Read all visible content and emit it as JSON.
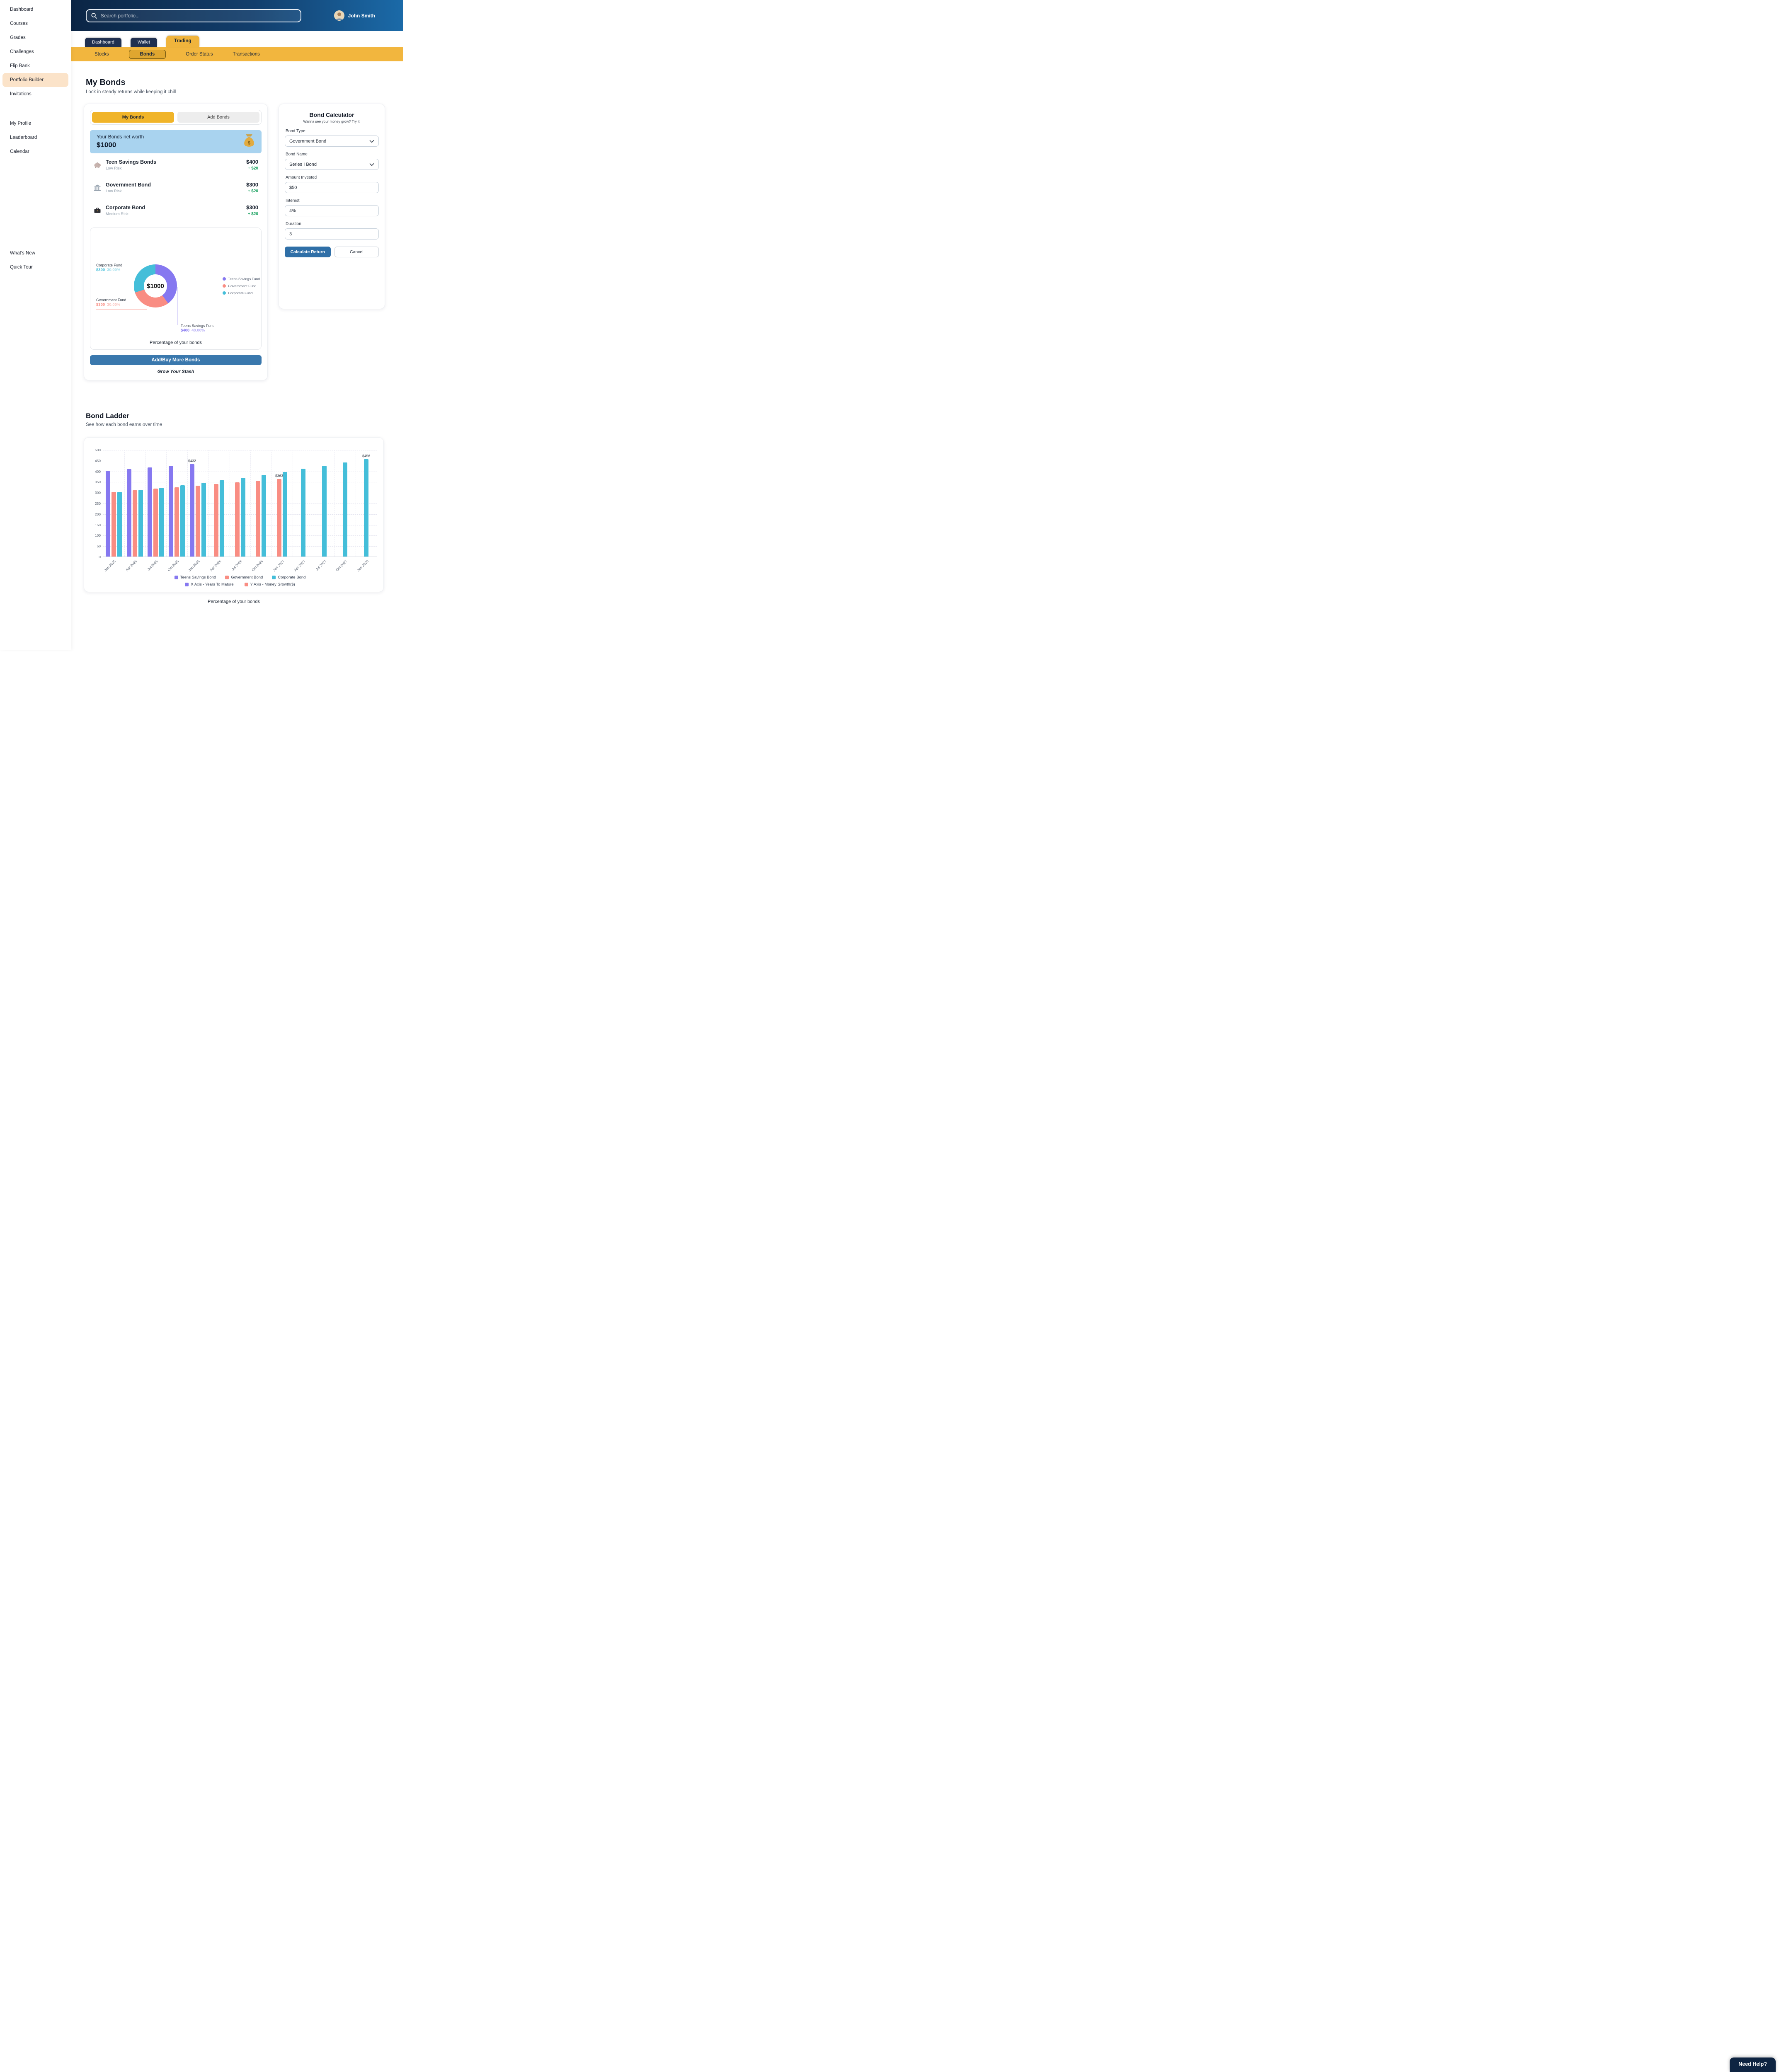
{
  "colors": {
    "teens": "#8678f0",
    "government": "#f98d83",
    "corporate": "#44bed9",
    "gold": "#f0b43c",
    "navy": "#203050",
    "blue_button": "#3a78ad",
    "green_gain": "#17a05e",
    "banner_blue": "#a9d3ef"
  },
  "header": {
    "search_placeholder": "Search portfolio...",
    "user_name": "John Smith"
  },
  "sidebar": {
    "groups": [
      {
        "items": [
          {
            "label": "Dashboard",
            "active": false
          },
          {
            "label": "Courses",
            "active": false
          },
          {
            "label": "Grades",
            "active": false
          },
          {
            "label": "Challenges",
            "active": false
          },
          {
            "label": "Flip Bank",
            "active": false
          },
          {
            "label": "Portfolio Builder",
            "active": true
          },
          {
            "label": "Invitations",
            "active": false
          }
        ]
      },
      {
        "items": [
          {
            "label": "My Profile",
            "active": false
          },
          {
            "label": "Leaderboard",
            "active": false
          },
          {
            "label": "Calendar",
            "active": false
          }
        ]
      },
      {
        "items": [
          {
            "label": "What's New",
            "active": false
          },
          {
            "label": "Quick Tour",
            "active": false
          }
        ]
      }
    ]
  },
  "tabs": [
    {
      "label": "Dashboard",
      "active": false
    },
    {
      "label": "Wallet",
      "active": false
    },
    {
      "label": "Trading",
      "active": true
    }
  ],
  "subtabs": [
    {
      "label": "Stocks",
      "active": false
    },
    {
      "label": "Bonds",
      "active": true
    },
    {
      "label": "Order Status",
      "active": false
    },
    {
      "label": "Transactions",
      "active": false
    }
  ],
  "my_bonds": {
    "title": "My Bonds",
    "subtitle": "Lock in steady returns while keeping it chill",
    "toggle": {
      "my_bonds": "My Bonds",
      "add_bonds": "Add Bonds"
    },
    "net_worth_label": "Your Bonds net worth",
    "net_worth_value": "$1000",
    "bonds": [
      {
        "name": "Teen Savings Bonds",
        "risk": "Low Risk",
        "value": "$400",
        "change": "+ $20",
        "icon": "piggy-bank"
      },
      {
        "name": "Government Bond",
        "risk": "Low Risk",
        "value": "$300",
        "change": "+ $20",
        "icon": "bank"
      },
      {
        "name": "Corporate Bond",
        "risk": "Medium Risk",
        "value": "$300",
        "change": "+ $20",
        "icon": "briefcase"
      }
    ],
    "add_button": "Add/Buy More Bonds",
    "footer_note": "Grow Your Stash"
  },
  "calculator": {
    "title": "Bond Calculator",
    "subtitle": "Wanna see your money grow? Try it!",
    "fields": {
      "bond_type": {
        "label": "Bond Type",
        "value": "Government Bond"
      },
      "bond_name": {
        "label": "Bond Name",
        "value": "Series I Bond"
      },
      "amount_invested": {
        "label": "Amount Invested",
        "value": "$50"
      },
      "interest": {
        "label": "Interest",
        "value": "4%"
      },
      "duration": {
        "label": "Duration",
        "value": "3"
      }
    },
    "calculate_label": "Calculate Return",
    "cancel_label": "Cancel"
  },
  "bond_ladder": {
    "title": "Bond Ladder",
    "subtitle": "See how each bond earns over time",
    "caption": "Percentage of your bonds"
  },
  "help_button": "Need Help?",
  "chart_data": [
    {
      "type": "pie",
      "title": "Percentage of your bonds",
      "center_label": "$1000",
      "slices": [
        {
          "name": "Teens Savings Fund",
          "value": 400,
          "pct": 40.0,
          "value_label": "$400",
          "pct_label": "40.00%",
          "color": "#8678f0"
        },
        {
          "name": "Government Fund",
          "value": 300,
          "pct": 30.0,
          "value_label": "$300",
          "pct_label": "30.00%",
          "color": "#f98d83"
        },
        {
          "name": "Corporate Fund",
          "value": 300,
          "pct": 30.0,
          "value_label": "$300",
          "pct_label": "30.00%",
          "color": "#44bed9"
        }
      ],
      "legend_position": "right"
    },
    {
      "type": "bar",
      "categories": [
        "Jan 2025",
        "Apr 2025",
        "Jul 2025",
        "Oct 2025",
        "Jan 2026",
        "Apr 2026",
        "Jul 2026",
        "Oct 2026",
        "Jan 2027",
        "Apr 2027",
        "Jul 2027",
        "Oct 2027",
        "Jan 2028"
      ],
      "series": [
        {
          "name": "Teens Savings Bond",
          "color": "#8678f0",
          "values": [
            400,
            408,
            416,
            424,
            432,
            null,
            null,
            null,
            null,
            null,
            null,
            null,
            null
          ]
        },
        {
          "name": "Government Bond",
          "color": "#f98d83",
          "values": [
            303,
            310,
            317,
            324,
            331,
            339,
            347,
            355,
            363,
            null,
            null,
            null,
            null
          ]
        },
        {
          "name": "Corporate Bond",
          "color": "#44bed9",
          "values": [
            303,
            312,
            322,
            333,
            345,
            357,
            369,
            382,
            395,
            410,
            425,
            440,
            456
          ]
        }
      ],
      "annotations": [
        {
          "series_index": 0,
          "category_index": 4,
          "label": "$432"
        },
        {
          "series_index": 1,
          "category_index": 8,
          "label": "$363"
        },
        {
          "series_index": 2,
          "category_index": 12,
          "label": "$456"
        }
      ],
      "ylim": [
        0,
        500
      ],
      "ytick_step": 50,
      "grid": true,
      "x_note": {
        "label": "X Axis - Years To Mature",
        "color": "#8678f0"
      },
      "y_note": {
        "label": "Y Axis - Money Growth($)",
        "color": "#f98d83"
      }
    }
  ]
}
